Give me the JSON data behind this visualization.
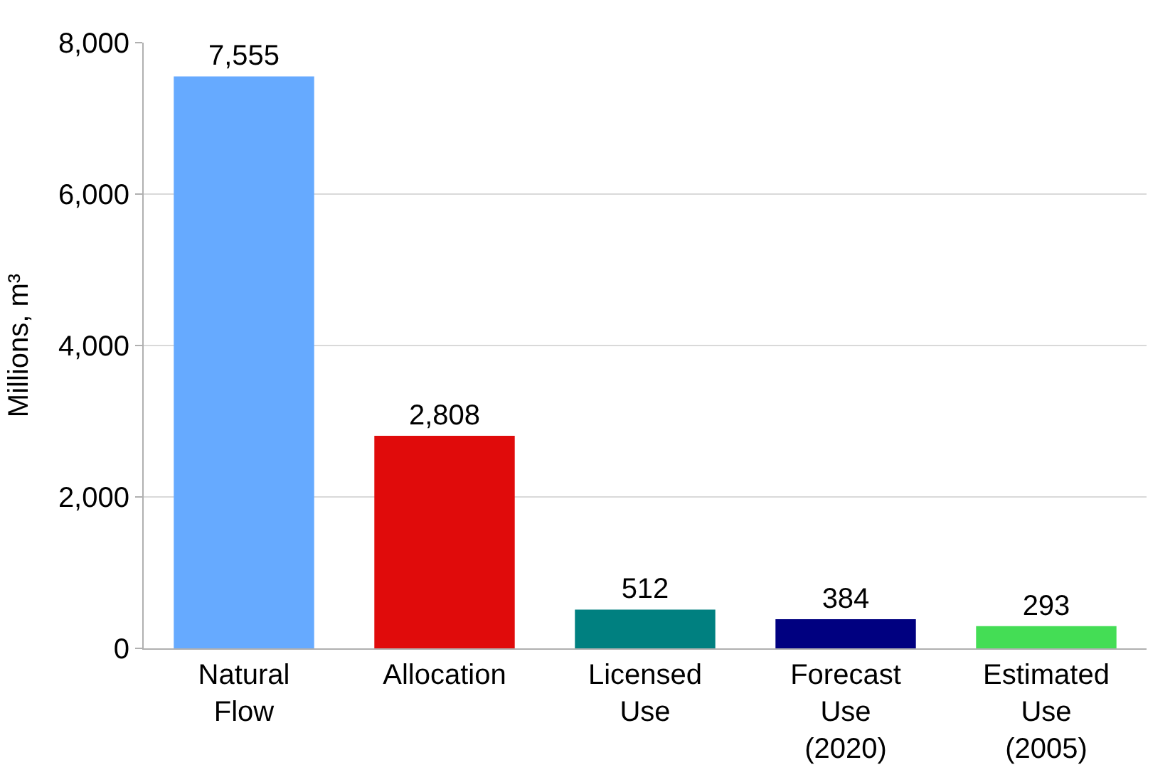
{
  "chart_data": {
    "type": "bar",
    "ylabel": "Millions, m³",
    "categories": [
      "Natural Flow",
      "Allocation",
      "Licensed Use",
      "Forecast Use (2020)",
      "Estimated Use (2005)"
    ],
    "values": [
      7555,
      2808,
      512,
      384,
      293
    ],
    "value_labels": [
      "7,555",
      "2,808",
      "512",
      "384",
      "293"
    ],
    "colors": [
      "#66aaff",
      "#e00b0b",
      "#008080",
      "#000080",
      "#44dd55"
    ],
    "ylim": [
      0,
      8000
    ],
    "yticks": [
      0,
      {
        "value": 2000,
        "label": "2,000"
      },
      {
        "value": 4000,
        "label": "4,000"
      },
      {
        "value": 6000,
        "label": "6,000"
      },
      {
        "value": 8000,
        "label": "8,000"
      }
    ],
    "grid": "y"
  }
}
